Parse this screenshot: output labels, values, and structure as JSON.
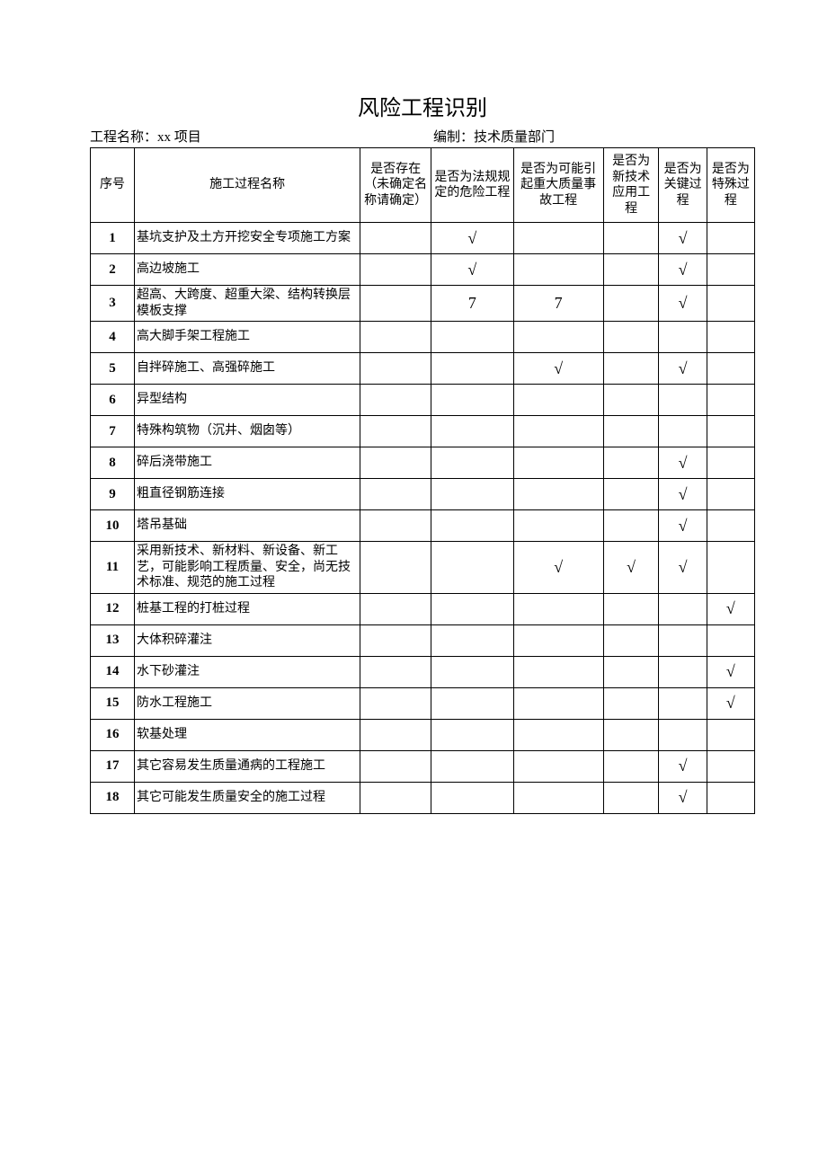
{
  "title": "风险工程识别",
  "meta": {
    "project_label": "工程名称：",
    "project_value": "xx 项目",
    "author_label": "编制：",
    "author_value": "技术质量部门"
  },
  "check": "√",
  "columns": {
    "seq": "序号",
    "name": "施工过程名称",
    "c1": "是否存在（未确定名称请确定）",
    "c2": "是否为法规规定的危险工程",
    "c3": "是否为可能引起重大质量事故工程",
    "c4": "是否为新技术应用工程",
    "c5": "是否为关键过程",
    "c6": "是否为特殊过程"
  },
  "rows": [
    {
      "seq": "1",
      "name": "基坑支护及土方开挖安全专项施工方案",
      "c1": "",
      "c2": "√",
      "c3": "",
      "c4": "",
      "c5": "√",
      "c6": "",
      "h": "tall"
    },
    {
      "seq": "2",
      "name": "高边坡施工",
      "c1": "",
      "c2": "√",
      "c3": "",
      "c4": "",
      "c5": "√",
      "c6": ""
    },
    {
      "seq": "3",
      "name": "超高、大跨度、超重大梁、结构转换层模板支撑",
      "c1": "",
      "c2": "7",
      "c3": "7",
      "c4": "",
      "c5": "√",
      "c6": "",
      "h": "tall"
    },
    {
      "seq": "4",
      "name": "高大脚手架工程施工",
      "c1": "",
      "c2": "",
      "c3": "",
      "c4": "",
      "c5": "",
      "c6": ""
    },
    {
      "seq": "5",
      "name": "自拌碎施工、高强碎施工",
      "c1": "",
      "c2": "",
      "c3": "√",
      "c4": "",
      "c5": "√",
      "c6": ""
    },
    {
      "seq": "6",
      "name": "异型结构",
      "c1": "",
      "c2": "",
      "c3": "",
      "c4": "",
      "c5": "",
      "c6": ""
    },
    {
      "seq": "7",
      "name": "特殊构筑物（沉井、烟囱等）",
      "c1": "",
      "c2": "",
      "c3": "",
      "c4": "",
      "c5": "",
      "c6": ""
    },
    {
      "seq": "8",
      "name": "碎后浇带施工",
      "c1": "",
      "c2": "",
      "c3": "",
      "c4": "",
      "c5": "√",
      "c6": ""
    },
    {
      "seq": "9",
      "name": "粗直径钢筋连接",
      "c1": "",
      "c2": "",
      "c3": "",
      "c4": "",
      "c5": "√",
      "c6": ""
    },
    {
      "seq": "10",
      "name": "塔吊基础",
      "c1": "",
      "c2": "",
      "c3": "",
      "c4": "",
      "c5": "√",
      "c6": ""
    },
    {
      "seq": "11",
      "name": "采用新技术、新材料、新设备、新工艺，可能影响工程质量、安全，尚无技术标准、规范的施工过程",
      "c1": "",
      "c2": "",
      "c3": "√",
      "c4": "√",
      "c5": "√",
      "c6": "",
      "h": "taller"
    },
    {
      "seq": "12",
      "name": "桩基工程的打桩过程",
      "c1": "",
      "c2": "",
      "c3": "",
      "c4": "",
      "c5": "",
      "c6": "√"
    },
    {
      "seq": "13",
      "name": "大体积碎灌注",
      "c1": "",
      "c2": "",
      "c3": "",
      "c4": "",
      "c5": "",
      "c6": ""
    },
    {
      "seq": "14",
      "name": "水下砂灌注",
      "c1": "",
      "c2": "",
      "c3": "",
      "c4": "",
      "c5": "",
      "c6": "√"
    },
    {
      "seq": "15",
      "name": "防水工程施工",
      "c1": "",
      "c2": "",
      "c3": "",
      "c4": "",
      "c5": "",
      "c6": "√"
    },
    {
      "seq": "16",
      "name": "软基处理",
      "c1": "",
      "c2": "",
      "c3": "",
      "c4": "",
      "c5": "",
      "c6": ""
    },
    {
      "seq": "17",
      "name": "其它容易发生质量通病的工程施工",
      "c1": "",
      "c2": "",
      "c3": "",
      "c4": "",
      "c5": "√",
      "c6": "",
      "h": "tall"
    },
    {
      "seq": "18",
      "name": "其它可能发生质量安全的施工过程",
      "c1": "",
      "c2": "",
      "c3": "",
      "c4": "",
      "c5": "√",
      "c6": "",
      "h": "tall"
    }
  ]
}
